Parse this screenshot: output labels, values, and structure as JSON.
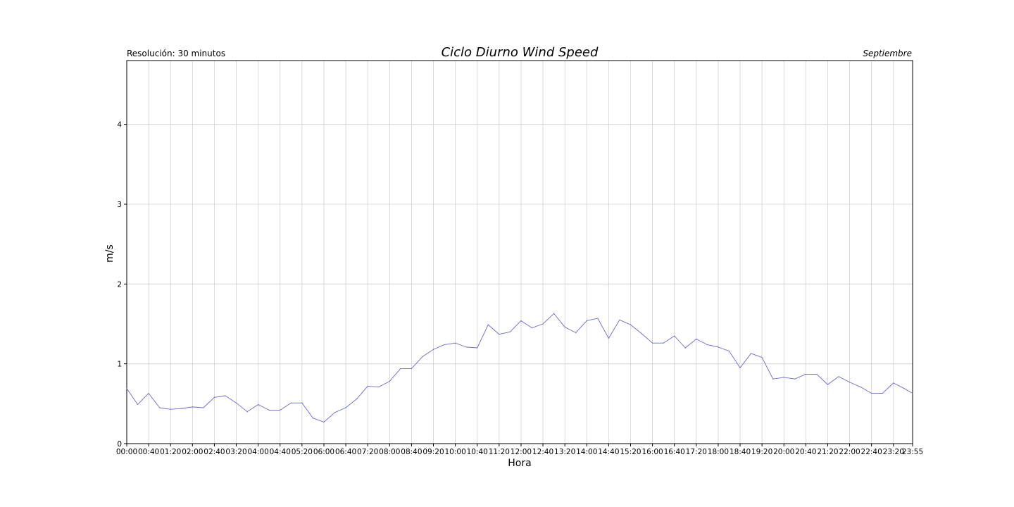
{
  "chart_data": {
    "type": "line",
    "title": "Ciclo Diurno Wind Speed",
    "subtitle_left": "Resolución: 30 minutos",
    "subtitle_right": "Septiembre",
    "xlabel": "Hora",
    "ylabel": "m/s",
    "ylim": [
      0,
      4.8
    ],
    "yticks": [
      0,
      1,
      2,
      3,
      4
    ],
    "grid": true,
    "colors": {
      "line": "#6b6bc9",
      "grid": "#d0d0d0",
      "axes": "#000000"
    },
    "x_tick_labels": [
      "00:00",
      "00:40",
      "01:20",
      "02:00",
      "02:40",
      "03:20",
      "04:00",
      "04:40",
      "05:20",
      "06:00",
      "06:40",
      "07:20",
      "08:00",
      "08:40",
      "09:20",
      "10:00",
      "10:40",
      "11:20",
      "12:00",
      "12:40",
      "13:20",
      "14:00",
      "14:40",
      "15:20",
      "16:00",
      "16:40",
      "17:20",
      "18:00",
      "18:40",
      "19:20",
      "20:00",
      "20:40",
      "21:20",
      "22:00",
      "22:40",
      "23:20",
      "23:55"
    ],
    "x": [
      "00:00",
      "00:20",
      "00:40",
      "01:00",
      "01:20",
      "01:40",
      "02:00",
      "02:20",
      "02:40",
      "03:00",
      "03:20",
      "03:40",
      "04:00",
      "04:20",
      "04:40",
      "05:00",
      "05:20",
      "05:40",
      "06:00",
      "06:20",
      "06:40",
      "07:00",
      "07:20",
      "07:40",
      "08:00",
      "08:20",
      "08:40",
      "09:00",
      "09:20",
      "09:40",
      "10:00",
      "10:20",
      "10:40",
      "11:00",
      "11:20",
      "11:40",
      "12:00",
      "12:20",
      "12:40",
      "13:00",
      "13:20",
      "13:40",
      "14:00",
      "14:20",
      "14:40",
      "15:00",
      "15:20",
      "15:40",
      "16:00",
      "16:20",
      "16:40",
      "17:00",
      "17:20",
      "17:40",
      "18:00",
      "18:20",
      "18:40",
      "19:00",
      "19:20",
      "19:40",
      "20:00",
      "20:20",
      "20:40",
      "21:00",
      "21:20",
      "21:40",
      "22:00",
      "22:20",
      "22:40",
      "23:00",
      "23:20",
      "23:40",
      "23:55"
    ],
    "series": [
      {
        "values": [
          0.69,
          0.49,
          0.63,
          0.45,
          0.43,
          0.44,
          0.46,
          0.45,
          0.58,
          0.6,
          0.51,
          0.4,
          0.49,
          0.42,
          0.42,
          0.51,
          0.51,
          0.32,
          0.27,
          0.39,
          0.45,
          0.56,
          0.72,
          0.71,
          0.78,
          0.94,
          0.94,
          1.09,
          1.18,
          1.24,
          1.26,
          1.21,
          1.2,
          1.49,
          1.37,
          1.4,
          1.54,
          1.45,
          1.5,
          1.63,
          1.46,
          1.39,
          1.54,
          1.57,
          1.32,
          1.55,
          1.49,
          1.38,
          1.26,
          1.26,
          1.35,
          1.2,
          1.31,
          1.24,
          1.21,
          1.16,
          0.95,
          1.13,
          1.08,
          0.81,
          0.83,
          0.81,
          0.87,
          0.87,
          0.74,
          0.84,
          0.77,
          0.71,
          0.63,
          0.63,
          0.76,
          0.69,
          0.63
        ]
      }
    ]
  }
}
